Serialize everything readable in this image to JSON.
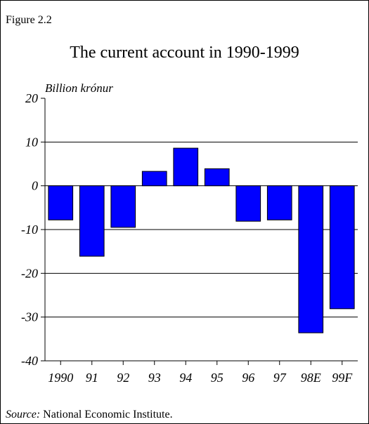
{
  "figure_label": "Figure 2.2",
  "source": {
    "label": "Source:",
    "text": "National Economic Institute."
  },
  "chart_data": {
    "type": "bar",
    "title": "The current account in 1990-1999",
    "ylabel": "Billion krónur",
    "xlabel": "",
    "categories": [
      "1990",
      "91",
      "92",
      "93",
      "94",
      "95",
      "96",
      "97",
      "98E",
      "99F"
    ],
    "values": [
      -7.8,
      -16.1,
      -9.5,
      3.3,
      8.6,
      3.9,
      -8.1,
      -7.8,
      -33.6,
      -28.1
    ],
    "ylim": [
      -40,
      20
    ],
    "yticks": [
      "20",
      "10",
      "0",
      "-10",
      "-20",
      "-30",
      "-40"
    ],
    "bar_color": "#0000ff",
    "grid": true
  }
}
